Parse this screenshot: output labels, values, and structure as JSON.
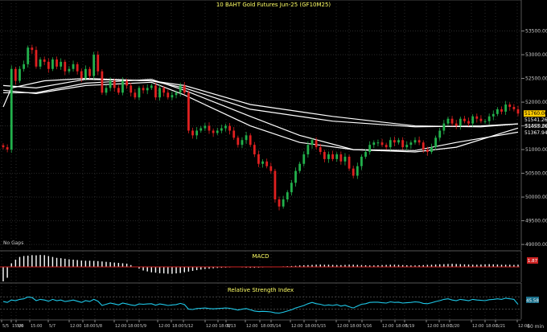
{
  "colors": {
    "background": "#000000",
    "grid": "#2a2a2a",
    "up": "#22b14c",
    "down": "#e02020",
    "ma": "#ffffff",
    "title": "#ffff66",
    "label": "#c8c8c8",
    "macd_bar": "#ffffff",
    "macd_signal": "#cc2222",
    "rsi_line": "#1ec8e8",
    "price_tag": "#ffcc00"
  },
  "chart_data": [
    {
      "type": "candlestick",
      "title": "10 BAHT Gold Futures Jun-25 (GF10M25)",
      "annotation": "No Gaps",
      "ylim": [
        48900,
        53950
      ],
      "y_ticks": [
        "53500.00",
        "53000.00",
        "52500.00",
        "52000.00",
        "51500.00",
        "51000.00",
        "50500.00",
        "50000.00",
        "49500.00",
        "49000.00"
      ],
      "price_tags": [
        "51760.00",
        "51541.26",
        "51453.26",
        "51367.94"
      ],
      "close_series": [
        51050,
        51000,
        52700,
        52450,
        52700,
        52800,
        53150,
        53100,
        52750,
        52900,
        52850,
        52700,
        52900,
        52750,
        52850,
        52650,
        52700,
        52800,
        52650,
        52500,
        52700,
        52550,
        53000,
        52650,
        52200,
        52300,
        52450,
        52300,
        52200,
        52450,
        52350,
        52200,
        52100,
        52300,
        52250,
        52300,
        52350,
        52100,
        52300,
        52200,
        52100,
        52150,
        52200,
        52350,
        52200,
        51400,
        51300,
        51400,
        51450,
        51500,
        51400,
        51350,
        51400,
        51450,
        51500,
        51400,
        51250,
        51100,
        51200,
        51300,
        51100,
        50900,
        50700,
        50750,
        50650,
        50550,
        49950,
        49800,
        49950,
        50100,
        50300,
        50550,
        50700,
        50900,
        51100,
        51200,
        51050,
        50950,
        50800,
        50900,
        50800,
        50900,
        50750,
        50850,
        50600,
        50450,
        50650,
        50850,
        50950,
        51100,
        51150,
        51150,
        51100,
        51050,
        51200,
        51150,
        51200,
        51050,
        51100,
        51150,
        51200,
        51150,
        51000,
        50950,
        51050,
        51250,
        51400,
        51550,
        51650,
        51550,
        51500,
        51650,
        51600,
        51550,
        51700,
        51650,
        51600,
        51600,
        51700,
        51750,
        51850,
        51800,
        51950,
        51900,
        51850,
        51760
      ],
      "moving_averages": [
        {
          "points": [
            [
              0,
              52350
            ],
            [
              8,
              52300
            ],
            [
              20,
              52480
            ],
            [
              36,
              52450
            ],
            [
              44,
              52350
            ],
            [
              60,
              51950
            ],
            [
              80,
              51700
            ],
            [
              100,
              51500
            ],
            [
              116,
              51480
            ],
            [
              125,
              51541.26
            ]
          ]
        },
        {
          "points": [
            [
              0,
              52200
            ],
            [
              8,
              52200
            ],
            [
              20,
              52400
            ],
            [
              36,
              52480
            ],
            [
              44,
              52250
            ],
            [
              60,
              51700
            ],
            [
              72,
              51300
            ],
            [
              85,
              51000
            ],
            [
              100,
              50950
            ],
            [
              110,
              51050
            ],
            [
              125,
              51453.26
            ]
          ]
        },
        {
          "points": [
            [
              0,
              52250
            ],
            [
              8,
              52180
            ],
            [
              20,
              52350
            ],
            [
              36,
              52420
            ],
            [
              44,
              52150
            ],
            [
              60,
              51500
            ],
            [
              72,
              51150
            ],
            [
              85,
              51000
            ],
            [
              100,
              50980
            ],
            [
              110,
              51150
            ],
            [
              125,
              51367.94
            ]
          ]
        },
        {
          "points": [
            [
              0,
              51900
            ],
            [
              2,
              52300
            ],
            [
              10,
              52450
            ],
            [
              20,
              52500
            ],
            [
              36,
              52450
            ],
            [
              44,
              52300
            ],
            [
              60,
              51850
            ],
            [
              80,
              51600
            ],
            [
              100,
              51480
            ],
            [
              116,
              51500
            ],
            [
              125,
              51541.26
            ]
          ]
        }
      ]
    },
    {
      "type": "bar",
      "title": "MACD",
      "value_tag": "1.87",
      "values": [
        -80,
        -60,
        20,
        40,
        55,
        60,
        62,
        65,
        64,
        66,
        65,
        60,
        55,
        50,
        48,
        45,
        42,
        40,
        38,
        35,
        34,
        34,
        33,
        32,
        30,
        28,
        26,
        24,
        22,
        20,
        18,
        10,
        0,
        -10,
        -20,
        -25,
        -30,
        -32,
        -35,
        -36,
        -38,
        -38,
        -36,
        -34,
        -30,
        -26,
        -22,
        -18,
        -15,
        -12,
        -10,
        -8,
        -6,
        -5,
        -4,
        -3,
        -2,
        -2,
        -3,
        -4,
        -5,
        -5,
        -4,
        -3,
        -2,
        -1,
        0,
        2,
        3,
        4,
        5,
        6,
        8,
        9,
        10,
        11,
        12,
        13,
        12,
        12,
        11,
        10,
        10,
        11,
        12,
        12,
        11,
        10,
        9,
        8,
        8,
        9,
        10,
        11,
        12,
        12,
        11,
        10,
        9,
        8,
        8,
        9,
        10,
        11,
        12,
        13,
        14,
        15,
        16,
        17,
        16,
        15,
        14,
        13,
        12,
        12,
        13,
        14,
        15,
        14,
        13,
        12,
        12,
        12,
        11,
        12
      ]
    },
    {
      "type": "line",
      "title": "Relative Strength Index",
      "value_tag": "45.58",
      "ylim": [
        0,
        100
      ],
      "values": [
        55,
        52,
        60,
        58,
        62,
        64,
        70,
        68,
        58,
        62,
        60,
        56,
        62,
        58,
        60,
        55,
        57,
        60,
        56,
        52,
        58,
        55,
        62,
        56,
        42,
        46,
        50,
        47,
        44,
        50,
        47,
        44,
        42,
        47,
        46,
        47,
        48,
        43,
        47,
        45,
        42,
        44,
        45,
        49,
        45,
        30,
        29,
        32,
        33,
        34,
        32,
        31,
        32,
        33,
        34,
        33,
        30,
        27,
        30,
        32,
        28,
        24,
        22,
        23,
        22,
        21,
        18,
        17,
        20,
        24,
        28,
        34,
        38,
        42,
        48,
        52,
        48,
        46,
        42,
        44,
        42,
        45,
        40,
        43,
        38,
        34,
        40,
        46,
        48,
        52,
        53,
        53,
        51,
        50,
        54,
        52,
        53,
        50,
        51,
        52,
        54,
        53,
        49,
        48,
        51,
        55,
        58,
        62,
        64,
        60,
        58,
        62,
        60,
        58,
        62,
        60,
        59,
        58,
        61,
        62,
        64,
        62,
        66,
        64,
        62,
        45.58
      ]
    }
  ],
  "x_axis": {
    "ticks": [
      {
        "label": "5/5",
        "x": 2
      },
      {
        "label": "15:00",
        "x": 14
      },
      {
        "label": "5/6",
        "x": 20
      },
      {
        "label": "15:00",
        "x": 37
      },
      {
        "label": "5/7",
        "x": 60
      },
      {
        "label": "12:00",
        "x": 86
      },
      {
        "label": "18:00",
        "x": 103
      },
      {
        "label": "5/8",
        "x": 118
      },
      {
        "label": "12:00",
        "x": 142
      },
      {
        "label": "18:00",
        "x": 158
      },
      {
        "label": "5/9",
        "x": 173
      },
      {
        "label": "12:00",
        "x": 196
      },
      {
        "label": "18:00",
        "x": 213
      },
      {
        "label": "5/12",
        "x": 228
      },
      {
        "label": "12:00",
        "x": 255
      },
      {
        "label": "18:00",
        "x": 271
      },
      {
        "label": "5/13",
        "x": 281
      },
      {
        "label": "12:00",
        "x": 305
      },
      {
        "label": "18:00",
        "x": 323
      },
      {
        "label": "5/14",
        "x": 337
      },
      {
        "label": "12:00",
        "x": 361
      },
      {
        "label": "18:00",
        "x": 378
      },
      {
        "label": "5/15",
        "x": 393
      },
      {
        "label": "12:00",
        "x": 418
      },
      {
        "label": "18:00",
        "x": 434
      },
      {
        "label": "5/16",
        "x": 450
      },
      {
        "label": "12:00",
        "x": 474
      },
      {
        "label": "18:00",
        "x": 491
      },
      {
        "label": "5/19",
        "x": 503
      },
      {
        "label": "12:00",
        "x": 530
      },
      {
        "label": "18:00",
        "x": 546
      },
      {
        "label": "5/20",
        "x": 559
      },
      {
        "label": "12:00",
        "x": 586
      },
      {
        "label": "18:00",
        "x": 603
      },
      {
        "label": "5/21",
        "x": 616
      },
      {
        "label": "12:00",
        "x": 643
      }
    ],
    "period": "60 min"
  }
}
